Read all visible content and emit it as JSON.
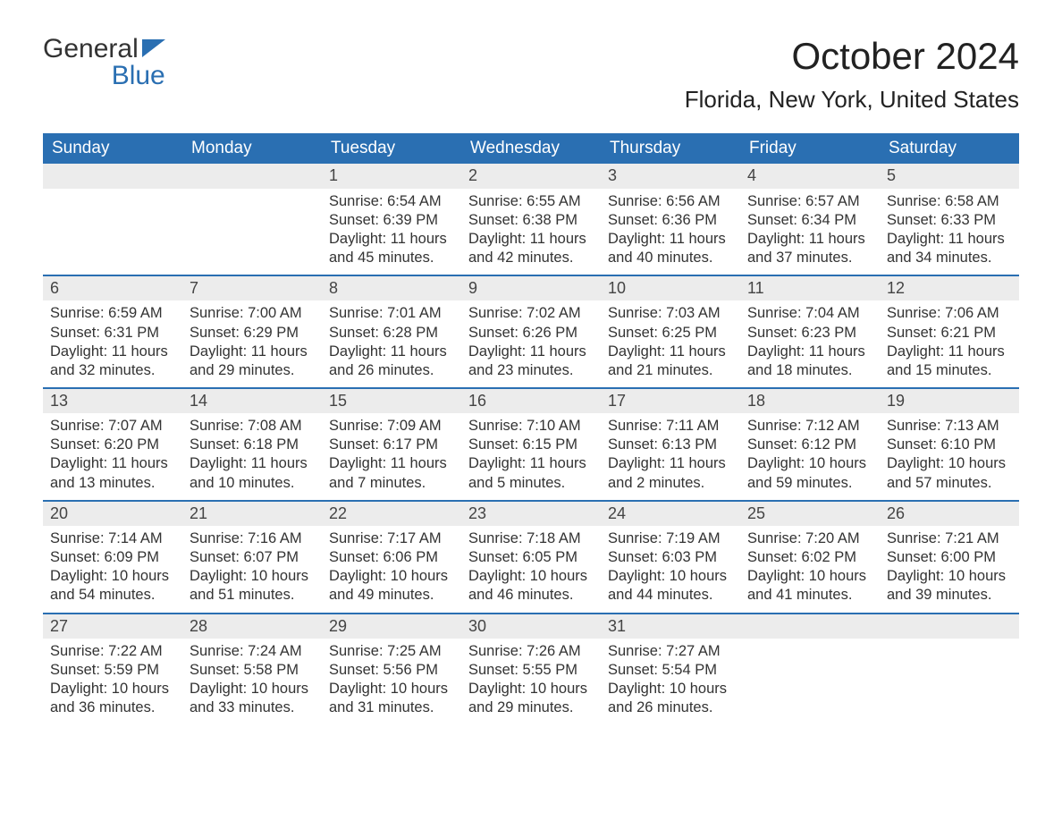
{
  "brand": {
    "word1": "General",
    "word2": "Blue"
  },
  "title": "October 2024",
  "location": "Florida, New York, United States",
  "colors": {
    "header_bg": "#2a6fb2",
    "header_text": "#ffffff",
    "daynum_bg": "#ececec",
    "daynum_border": "#2a6fb2",
    "body_text": "#333333",
    "page_bg": "#ffffff",
    "logo_blue": "#2a6fb2"
  },
  "fonts": {
    "title_size_pt": 32,
    "location_size_pt": 20,
    "header_size_pt": 14,
    "daynum_size_pt": 14,
    "body_size_pt": 12
  },
  "days_of_week": [
    "Sunday",
    "Monday",
    "Tuesday",
    "Wednesday",
    "Thursday",
    "Friday",
    "Saturday"
  ],
  "weeks": [
    [
      null,
      null,
      {
        "n": "1",
        "sunrise": "Sunrise: 6:54 AM",
        "sunset": "Sunset: 6:39 PM",
        "day1": "Daylight: 11 hours",
        "day2": "and 45 minutes."
      },
      {
        "n": "2",
        "sunrise": "Sunrise: 6:55 AM",
        "sunset": "Sunset: 6:38 PM",
        "day1": "Daylight: 11 hours",
        "day2": "and 42 minutes."
      },
      {
        "n": "3",
        "sunrise": "Sunrise: 6:56 AM",
        "sunset": "Sunset: 6:36 PM",
        "day1": "Daylight: 11 hours",
        "day2": "and 40 minutes."
      },
      {
        "n": "4",
        "sunrise": "Sunrise: 6:57 AM",
        "sunset": "Sunset: 6:34 PM",
        "day1": "Daylight: 11 hours",
        "day2": "and 37 minutes."
      },
      {
        "n": "5",
        "sunrise": "Sunrise: 6:58 AM",
        "sunset": "Sunset: 6:33 PM",
        "day1": "Daylight: 11 hours",
        "day2": "and 34 minutes."
      }
    ],
    [
      {
        "n": "6",
        "sunrise": "Sunrise: 6:59 AM",
        "sunset": "Sunset: 6:31 PM",
        "day1": "Daylight: 11 hours",
        "day2": "and 32 minutes."
      },
      {
        "n": "7",
        "sunrise": "Sunrise: 7:00 AM",
        "sunset": "Sunset: 6:29 PM",
        "day1": "Daylight: 11 hours",
        "day2": "and 29 minutes."
      },
      {
        "n": "8",
        "sunrise": "Sunrise: 7:01 AM",
        "sunset": "Sunset: 6:28 PM",
        "day1": "Daylight: 11 hours",
        "day2": "and 26 minutes."
      },
      {
        "n": "9",
        "sunrise": "Sunrise: 7:02 AM",
        "sunset": "Sunset: 6:26 PM",
        "day1": "Daylight: 11 hours",
        "day2": "and 23 minutes."
      },
      {
        "n": "10",
        "sunrise": "Sunrise: 7:03 AM",
        "sunset": "Sunset: 6:25 PM",
        "day1": "Daylight: 11 hours",
        "day2": "and 21 minutes."
      },
      {
        "n": "11",
        "sunrise": "Sunrise: 7:04 AM",
        "sunset": "Sunset: 6:23 PM",
        "day1": "Daylight: 11 hours",
        "day2": "and 18 minutes."
      },
      {
        "n": "12",
        "sunrise": "Sunrise: 7:06 AM",
        "sunset": "Sunset: 6:21 PM",
        "day1": "Daylight: 11 hours",
        "day2": "and 15 minutes."
      }
    ],
    [
      {
        "n": "13",
        "sunrise": "Sunrise: 7:07 AM",
        "sunset": "Sunset: 6:20 PM",
        "day1": "Daylight: 11 hours",
        "day2": "and 13 minutes."
      },
      {
        "n": "14",
        "sunrise": "Sunrise: 7:08 AM",
        "sunset": "Sunset: 6:18 PM",
        "day1": "Daylight: 11 hours",
        "day2": "and 10 minutes."
      },
      {
        "n": "15",
        "sunrise": "Sunrise: 7:09 AM",
        "sunset": "Sunset: 6:17 PM",
        "day1": "Daylight: 11 hours",
        "day2": "and 7 minutes."
      },
      {
        "n": "16",
        "sunrise": "Sunrise: 7:10 AM",
        "sunset": "Sunset: 6:15 PM",
        "day1": "Daylight: 11 hours",
        "day2": "and 5 minutes."
      },
      {
        "n": "17",
        "sunrise": "Sunrise: 7:11 AM",
        "sunset": "Sunset: 6:13 PM",
        "day1": "Daylight: 11 hours",
        "day2": "and 2 minutes."
      },
      {
        "n": "18",
        "sunrise": "Sunrise: 7:12 AM",
        "sunset": "Sunset: 6:12 PM",
        "day1": "Daylight: 10 hours",
        "day2": "and 59 minutes."
      },
      {
        "n": "19",
        "sunrise": "Sunrise: 7:13 AM",
        "sunset": "Sunset: 6:10 PM",
        "day1": "Daylight: 10 hours",
        "day2": "and 57 minutes."
      }
    ],
    [
      {
        "n": "20",
        "sunrise": "Sunrise: 7:14 AM",
        "sunset": "Sunset: 6:09 PM",
        "day1": "Daylight: 10 hours",
        "day2": "and 54 minutes."
      },
      {
        "n": "21",
        "sunrise": "Sunrise: 7:16 AM",
        "sunset": "Sunset: 6:07 PM",
        "day1": "Daylight: 10 hours",
        "day2": "and 51 minutes."
      },
      {
        "n": "22",
        "sunrise": "Sunrise: 7:17 AM",
        "sunset": "Sunset: 6:06 PM",
        "day1": "Daylight: 10 hours",
        "day2": "and 49 minutes."
      },
      {
        "n": "23",
        "sunrise": "Sunrise: 7:18 AM",
        "sunset": "Sunset: 6:05 PM",
        "day1": "Daylight: 10 hours",
        "day2": "and 46 minutes."
      },
      {
        "n": "24",
        "sunrise": "Sunrise: 7:19 AM",
        "sunset": "Sunset: 6:03 PM",
        "day1": "Daylight: 10 hours",
        "day2": "and 44 minutes."
      },
      {
        "n": "25",
        "sunrise": "Sunrise: 7:20 AM",
        "sunset": "Sunset: 6:02 PM",
        "day1": "Daylight: 10 hours",
        "day2": "and 41 minutes."
      },
      {
        "n": "26",
        "sunrise": "Sunrise: 7:21 AM",
        "sunset": "Sunset: 6:00 PM",
        "day1": "Daylight: 10 hours",
        "day2": "and 39 minutes."
      }
    ],
    [
      {
        "n": "27",
        "sunrise": "Sunrise: 7:22 AM",
        "sunset": "Sunset: 5:59 PM",
        "day1": "Daylight: 10 hours",
        "day2": "and 36 minutes."
      },
      {
        "n": "28",
        "sunrise": "Sunrise: 7:24 AM",
        "sunset": "Sunset: 5:58 PM",
        "day1": "Daylight: 10 hours",
        "day2": "and 33 minutes."
      },
      {
        "n": "29",
        "sunrise": "Sunrise: 7:25 AM",
        "sunset": "Sunset: 5:56 PM",
        "day1": "Daylight: 10 hours",
        "day2": "and 31 minutes."
      },
      {
        "n": "30",
        "sunrise": "Sunrise: 7:26 AM",
        "sunset": "Sunset: 5:55 PM",
        "day1": "Daylight: 10 hours",
        "day2": "and 29 minutes."
      },
      {
        "n": "31",
        "sunrise": "Sunrise: 7:27 AM",
        "sunset": "Sunset: 5:54 PM",
        "day1": "Daylight: 10 hours",
        "day2": "and 26 minutes."
      },
      null,
      null
    ]
  ]
}
